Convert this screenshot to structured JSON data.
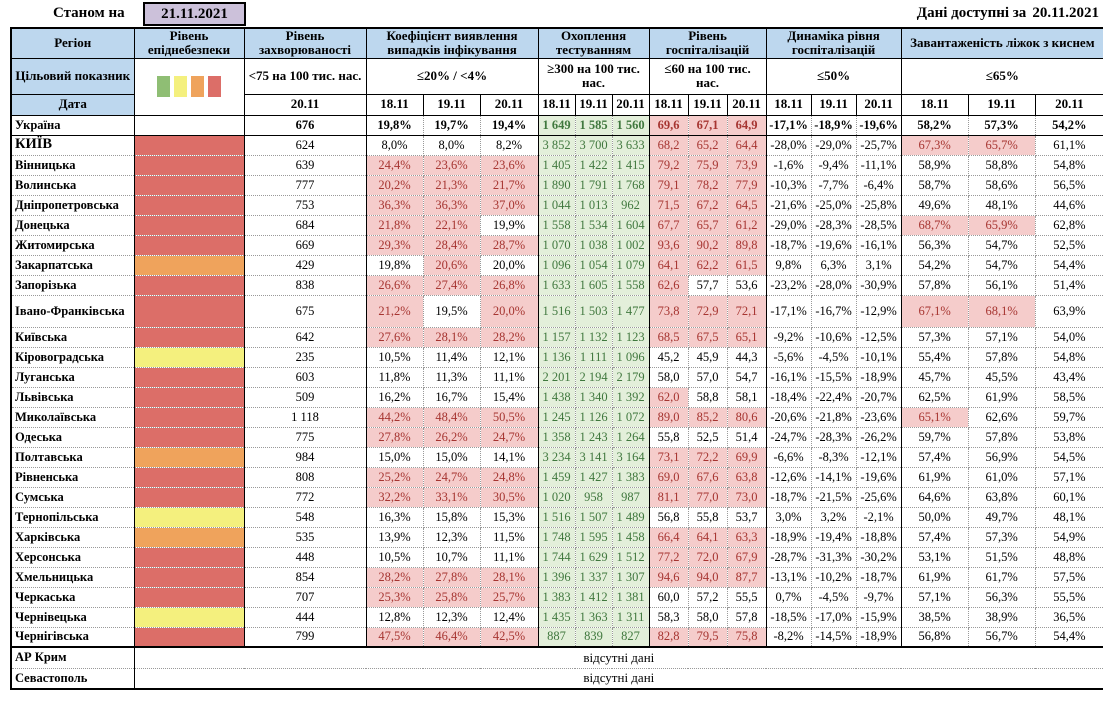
{
  "meta": {
    "as_of_label": "Станом на",
    "as_of_date": "21.11.2021",
    "available_label": "Дані доступні за",
    "available_date": "20.11.2021"
  },
  "header": {
    "region": "Регіон",
    "target_label": "Цільовий показник",
    "date_label": "Дата",
    "legend_colors": [
      "#8FBE74",
      "#F4F07E",
      "#EFA35C",
      "#DC6E68"
    ],
    "legend_names": [
      "green",
      "yellow",
      "orange",
      "red"
    ],
    "groups": [
      {
        "title": "Рівень епіднебезпеки",
        "target": "",
        "dates": []
      },
      {
        "title": "Рівень захворюваності",
        "target": "<75 на 100 тис. нас.",
        "dates": [
          "20.11"
        ]
      },
      {
        "title": "Коефіцієнт виявлення випадків інфікування",
        "target": "≤20% / <4%",
        "dates": [
          "18.11",
          "19.11",
          "20.11"
        ]
      },
      {
        "title": "Охоплення тестуванням",
        "target": "≥300 на 100 тис. нас.",
        "dates": [
          "18.11",
          "19.11",
          "20.11"
        ]
      },
      {
        "title": "Рівень госпіталізацій",
        "target": "≤60 на 100 тис. нас.",
        "dates": [
          "18.11",
          "19.11",
          "20.11"
        ]
      },
      {
        "title": "Динаміка рівня госпіталізацій",
        "target": "≤50%",
        "dates": [
          "18.11",
          "19.11",
          "20.11"
        ]
      },
      {
        "title": "Завантаженість ліжок з киснем",
        "target": "≤65%",
        "dates": [
          "18.11",
          "19.11",
          "20.11"
        ]
      }
    ]
  },
  "colors": {
    "header_blue": "#BDD7EE",
    "lavender_box": "#CCC1DA",
    "level_red": "#DC6E68",
    "level_orange": "#EFA35C",
    "level_yellow": "#F4F07E",
    "level_green": "#8FBE74",
    "alert_pink_bg": "#F5CCCB",
    "alert_red_text": "#A63531",
    "ok_green_bg": "#E3EFDA",
    "ok_green_text": "#40783E"
  },
  "rows": [
    {
      "r": "Україна",
      "bold": true,
      "lv": "",
      "inc": "676",
      "det": [
        "19,8%",
        "19,7%",
        "19,4%"
      ],
      "dhl": [
        0,
        0,
        0
      ],
      "tst": [
        "1 649",
        "1 585",
        "1 560"
      ],
      "hsp": [
        "69,6",
        "67,1",
        "64,9"
      ],
      "hhl": [
        1,
        1,
        1
      ],
      "dyn": [
        "-17,1%",
        "-18,9%",
        "-19,6%"
      ],
      "bed": [
        "58,2%",
        "57,3%",
        "54,2%"
      ],
      "bhl": [
        0,
        0,
        0
      ]
    },
    {
      "r": "КИЇВ",
      "caps": true,
      "lv": "red",
      "inc": "624",
      "det": [
        "8,0%",
        "8,0%",
        "8,2%"
      ],
      "dhl": [
        0,
        0,
        0
      ],
      "tst": [
        "3 852",
        "3 700",
        "3 633"
      ],
      "hsp": [
        "68,2",
        "65,2",
        "64,4"
      ],
      "hhl": [
        1,
        1,
        1
      ],
      "dyn": [
        "-28,0%",
        "-29,0%",
        "-25,7%"
      ],
      "bed": [
        "67,3%",
        "65,7%",
        "61,1%"
      ],
      "bhl": [
        1,
        1,
        0
      ]
    },
    {
      "r": "Вінницька",
      "lv": "red",
      "inc": "639",
      "det": [
        "24,4%",
        "23,6%",
        "23,6%"
      ],
      "dhl": [
        1,
        1,
        1
      ],
      "tst": [
        "1 405",
        "1 422",
        "1 415"
      ],
      "hsp": [
        "79,2",
        "75,9",
        "73,9"
      ],
      "hhl": [
        1,
        1,
        1
      ],
      "dyn": [
        "-1,6%",
        "-9,4%",
        "-11,1%"
      ],
      "bed": [
        "58,9%",
        "58,8%",
        "54,8%"
      ],
      "bhl": [
        0,
        0,
        0
      ]
    },
    {
      "r": "Волинська",
      "lv": "red",
      "inc": "777",
      "det": [
        "20,2%",
        "21,3%",
        "21,7%"
      ],
      "dhl": [
        1,
        1,
        1
      ],
      "tst": [
        "1 890",
        "1 791",
        "1 768"
      ],
      "hsp": [
        "79,1",
        "78,2",
        "77,9"
      ],
      "hhl": [
        1,
        1,
        1
      ],
      "dyn": [
        "-10,3%",
        "-7,7%",
        "-6,4%"
      ],
      "bed": [
        "58,7%",
        "58,6%",
        "56,5%"
      ],
      "bhl": [
        0,
        0,
        0
      ]
    },
    {
      "r": "Дніпропетровська",
      "lv": "red",
      "inc": "753",
      "det": [
        "36,3%",
        "36,3%",
        "37,0%"
      ],
      "dhl": [
        1,
        1,
        1
      ],
      "tst": [
        "1 044",
        "1 013",
        "962"
      ],
      "hsp": [
        "71,5",
        "67,2",
        "64,5"
      ],
      "hhl": [
        1,
        1,
        1
      ],
      "dyn": [
        "-21,6%",
        "-25,0%",
        "-25,8%"
      ],
      "bed": [
        "49,6%",
        "48,1%",
        "44,6%"
      ],
      "bhl": [
        0,
        0,
        0
      ]
    },
    {
      "r": "Донецька",
      "lv": "red",
      "inc": "684",
      "det": [
        "21,8%",
        "22,1%",
        "19,9%"
      ],
      "dhl": [
        1,
        1,
        0
      ],
      "tst": [
        "1 558",
        "1 534",
        "1 604"
      ],
      "hsp": [
        "67,7",
        "65,7",
        "61,2"
      ],
      "hhl": [
        1,
        1,
        1
      ],
      "dyn": [
        "-29,0%",
        "-28,3%",
        "-28,5%"
      ],
      "bed": [
        "68,7%",
        "65,9%",
        "62,8%"
      ],
      "bhl": [
        1,
        1,
        0
      ]
    },
    {
      "r": "Житомирська",
      "lv": "red",
      "inc": "669",
      "det": [
        "29,3%",
        "28,4%",
        "28,7%"
      ],
      "dhl": [
        1,
        1,
        1
      ],
      "tst": [
        "1 070",
        "1 038",
        "1 002"
      ],
      "hsp": [
        "93,6",
        "90,2",
        "89,8"
      ],
      "hhl": [
        1,
        1,
        1
      ],
      "dyn": [
        "-18,7%",
        "-19,6%",
        "-16,1%"
      ],
      "bed": [
        "56,3%",
        "54,7%",
        "52,5%"
      ],
      "bhl": [
        0,
        0,
        0
      ]
    },
    {
      "r": "Закарпатська",
      "lv": "orange",
      "inc": "429",
      "det": [
        "19,8%",
        "20,6%",
        "20,0%"
      ],
      "dhl": [
        0,
        1,
        0
      ],
      "tst": [
        "1 096",
        "1 054",
        "1 079"
      ],
      "hsp": [
        "64,1",
        "62,2",
        "61,5"
      ],
      "hhl": [
        1,
        1,
        1
      ],
      "dyn": [
        "9,8%",
        "6,3%",
        "3,1%"
      ],
      "bed": [
        "54,2%",
        "54,7%",
        "54,4%"
      ],
      "bhl": [
        0,
        0,
        0
      ]
    },
    {
      "r": "Запорізька",
      "lv": "red",
      "inc": "838",
      "det": [
        "26,6%",
        "27,4%",
        "26,8%"
      ],
      "dhl": [
        1,
        1,
        1
      ],
      "tst": [
        "1 633",
        "1 605",
        "1 558"
      ],
      "hsp": [
        "62,6",
        "57,7",
        "53,6"
      ],
      "hhl": [
        1,
        0,
        0
      ],
      "dyn": [
        "-23,2%",
        "-28,0%",
        "-30,9%"
      ],
      "bed": [
        "57,8%",
        "56,1%",
        "51,4%"
      ],
      "bhl": [
        0,
        0,
        0
      ]
    },
    {
      "r": "Івано-Франківська",
      "tall": true,
      "lv": "red",
      "inc": "675",
      "det": [
        "21,2%",
        "19,5%",
        "20,0%"
      ],
      "dhl": [
        1,
        0,
        1
      ],
      "tst": [
        "1 516",
        "1 503",
        "1 477"
      ],
      "hsp": [
        "73,8",
        "72,9",
        "72,1"
      ],
      "hhl": [
        1,
        1,
        1
      ],
      "dyn": [
        "-17,1%",
        "-16,7%",
        "-12,9%"
      ],
      "bed": [
        "67,1%",
        "68,1%",
        "63,9%"
      ],
      "bhl": [
        1,
        1,
        0
      ]
    },
    {
      "r": "Київська",
      "lv": "red",
      "inc": "642",
      "det": [
        "27,6%",
        "28,1%",
        "28,2%"
      ],
      "dhl": [
        1,
        1,
        1
      ],
      "tst": [
        "1 157",
        "1 132",
        "1 123"
      ],
      "hsp": [
        "68,5",
        "67,5",
        "65,1"
      ],
      "hhl": [
        1,
        1,
        1
      ],
      "dyn": [
        "-9,2%",
        "-10,6%",
        "-12,5%"
      ],
      "bed": [
        "57,3%",
        "57,1%",
        "54,0%"
      ],
      "bhl": [
        0,
        0,
        0
      ]
    },
    {
      "r": "Кіровоградська",
      "lv": "yellow",
      "inc": "235",
      "det": [
        "10,5%",
        "11,4%",
        "12,1%"
      ],
      "dhl": [
        0,
        0,
        0
      ],
      "tst": [
        "1 136",
        "1 111",
        "1 096"
      ],
      "hsp": [
        "45,2",
        "45,9",
        "44,3"
      ],
      "hhl": [
        0,
        0,
        0
      ],
      "dyn": [
        "-5,6%",
        "-4,5%",
        "-10,1%"
      ],
      "bed": [
        "55,4%",
        "57,8%",
        "54,8%"
      ],
      "bhl": [
        0,
        0,
        0
      ]
    },
    {
      "r": "Луганська",
      "lv": "red",
      "inc": "603",
      "det": [
        "11,8%",
        "11,3%",
        "11,1%"
      ],
      "dhl": [
        0,
        0,
        0
      ],
      "tst": [
        "2 201",
        "2 194",
        "2 179"
      ],
      "hsp": [
        "58,0",
        "57,0",
        "54,7"
      ],
      "hhl": [
        0,
        0,
        0
      ],
      "dyn": [
        "-16,1%",
        "-15,5%",
        "-18,9%"
      ],
      "bed": [
        "45,7%",
        "45,5%",
        "43,4%"
      ],
      "bhl": [
        0,
        0,
        0
      ]
    },
    {
      "r": "Львівська",
      "lv": "red",
      "inc": "509",
      "det": [
        "16,2%",
        "16,7%",
        "15,4%"
      ],
      "dhl": [
        0,
        0,
        0
      ],
      "tst": [
        "1 438",
        "1 340",
        "1 392"
      ],
      "hsp": [
        "62,0",
        "58,8",
        "58,1"
      ],
      "hhl": [
        1,
        0,
        0
      ],
      "dyn": [
        "-18,4%",
        "-22,4%",
        "-20,7%"
      ],
      "bed": [
        "62,5%",
        "61,9%",
        "58,5%"
      ],
      "bhl": [
        0,
        0,
        0
      ]
    },
    {
      "r": "Миколаївська",
      "lv": "red",
      "inc": "1 118",
      "det": [
        "44,2%",
        "48,4%",
        "50,5%"
      ],
      "dhl": [
        1,
        1,
        1
      ],
      "tst": [
        "1 245",
        "1 126",
        "1 072"
      ],
      "hsp": [
        "89,0",
        "85,2",
        "80,6"
      ],
      "hhl": [
        1,
        1,
        1
      ],
      "dyn": [
        "-20,6%",
        "-21,8%",
        "-23,6%"
      ],
      "bed": [
        "65,1%",
        "62,6%",
        "59,7%"
      ],
      "bhl": [
        1,
        0,
        0
      ]
    },
    {
      "r": "Одеська",
      "lv": "red",
      "inc": "775",
      "det": [
        "27,8%",
        "26,2%",
        "24,7%"
      ],
      "dhl": [
        1,
        1,
        1
      ],
      "tst": [
        "1 358",
        "1 243",
        "1 264"
      ],
      "hsp": [
        "55,8",
        "52,5",
        "51,4"
      ],
      "hhl": [
        0,
        0,
        0
      ],
      "dyn": [
        "-24,7%",
        "-28,3%",
        "-26,2%"
      ],
      "bed": [
        "59,7%",
        "57,8%",
        "53,8%"
      ],
      "bhl": [
        0,
        0,
        0
      ]
    },
    {
      "r": "Полтавська",
      "lv": "orange",
      "inc": "984",
      "det": [
        "15,0%",
        "15,0%",
        "14,1%"
      ],
      "dhl": [
        0,
        0,
        0
      ],
      "tst": [
        "3 234",
        "3 141",
        "3 164"
      ],
      "hsp": [
        "73,1",
        "72,2",
        "69,9"
      ],
      "hhl": [
        1,
        1,
        1
      ],
      "dyn": [
        "-6,6%",
        "-8,3%",
        "-12,1%"
      ],
      "bed": [
        "57,4%",
        "56,9%",
        "54,5%"
      ],
      "bhl": [
        0,
        0,
        0
      ]
    },
    {
      "r": "Рівненська",
      "lv": "red",
      "inc": "808",
      "det": [
        "25,2%",
        "24,7%",
        "24,8%"
      ],
      "dhl": [
        1,
        1,
        1
      ],
      "tst": [
        "1 459",
        "1 427",
        "1 383"
      ],
      "hsp": [
        "69,0",
        "67,6",
        "63,8"
      ],
      "hhl": [
        1,
        1,
        1
      ],
      "dyn": [
        "-12,6%",
        "-14,1%",
        "-19,6%"
      ],
      "bed": [
        "61,9%",
        "61,0%",
        "57,1%"
      ],
      "bhl": [
        0,
        0,
        0
      ]
    },
    {
      "r": "Сумська",
      "lv": "red",
      "inc": "772",
      "det": [
        "32,2%",
        "33,1%",
        "30,5%"
      ],
      "dhl": [
        1,
        1,
        1
      ],
      "tst": [
        "1 020",
        "958",
        "987"
      ],
      "hsp": [
        "81,1",
        "77,0",
        "73,0"
      ],
      "hhl": [
        1,
        1,
        1
      ],
      "dyn": [
        "-18,7%",
        "-21,5%",
        "-25,6%"
      ],
      "bed": [
        "64,6%",
        "63,8%",
        "60,1%"
      ],
      "bhl": [
        0,
        0,
        0
      ]
    },
    {
      "r": "Тернопільська",
      "lv": "yellow",
      "inc": "548",
      "det": [
        "16,3%",
        "15,8%",
        "15,3%"
      ],
      "dhl": [
        0,
        0,
        0
      ],
      "tst": [
        "1 516",
        "1 507",
        "1 489"
      ],
      "hsp": [
        "56,8",
        "55,8",
        "53,7"
      ],
      "hhl": [
        0,
        0,
        0
      ],
      "dyn": [
        "3,0%",
        "3,2%",
        "-2,1%"
      ],
      "bed": [
        "50,0%",
        "49,7%",
        "48,1%"
      ],
      "bhl": [
        0,
        0,
        0
      ]
    },
    {
      "r": "Харківська",
      "lv": "orange",
      "inc": "535",
      "det": [
        "13,9%",
        "12,3%",
        "11,5%"
      ],
      "dhl": [
        0,
        0,
        0
      ],
      "tst": [
        "1 748",
        "1 595",
        "1 458"
      ],
      "hsp": [
        "66,4",
        "64,1",
        "63,3"
      ],
      "hhl": [
        1,
        1,
        1
      ],
      "dyn": [
        "-18,9%",
        "-19,4%",
        "-18,8%"
      ],
      "bed": [
        "57,4%",
        "57,3%",
        "54,9%"
      ],
      "bhl": [
        0,
        0,
        0
      ]
    },
    {
      "r": "Херсонська",
      "lv": "red",
      "inc": "448",
      "det": [
        "10,5%",
        "10,7%",
        "11,1%"
      ],
      "dhl": [
        0,
        0,
        0
      ],
      "tst": [
        "1 744",
        "1 629",
        "1 512"
      ],
      "hsp": [
        "77,2",
        "72,0",
        "67,9"
      ],
      "hhl": [
        1,
        1,
        1
      ],
      "dyn": [
        "-28,7%",
        "-31,3%",
        "-30,2%"
      ],
      "bed": [
        "53,1%",
        "51,5%",
        "48,8%"
      ],
      "bhl": [
        0,
        0,
        0
      ]
    },
    {
      "r": "Хмельницька",
      "lv": "red",
      "inc": "854",
      "det": [
        "28,2%",
        "27,8%",
        "28,1%"
      ],
      "dhl": [
        1,
        1,
        1
      ],
      "tst": [
        "1 396",
        "1 337",
        "1 307"
      ],
      "hsp": [
        "94,6",
        "94,0",
        "87,7"
      ],
      "hhl": [
        1,
        1,
        1
      ],
      "dyn": [
        "-13,1%",
        "-10,2%",
        "-18,7%"
      ],
      "bed": [
        "61,9%",
        "61,7%",
        "57,5%"
      ],
      "bhl": [
        0,
        0,
        0
      ]
    },
    {
      "r": "Черкаська",
      "lv": "red",
      "inc": "707",
      "det": [
        "25,3%",
        "25,8%",
        "25,7%"
      ],
      "dhl": [
        1,
        1,
        1
      ],
      "tst": [
        "1 383",
        "1 412",
        "1 381"
      ],
      "hsp": [
        "60,0",
        "57,2",
        "55,5"
      ],
      "hhl": [
        0,
        0,
        0
      ],
      "dyn": [
        "0,7%",
        "-4,5%",
        "-9,7%"
      ],
      "bed": [
        "57,1%",
        "56,3%",
        "55,5%"
      ],
      "bhl": [
        0,
        0,
        0
      ]
    },
    {
      "r": "Чернівецька",
      "lv": "yellow",
      "inc": "444",
      "det": [
        "12,8%",
        "12,3%",
        "12,4%"
      ],
      "dhl": [
        0,
        0,
        0
      ],
      "tst": [
        "1 435",
        "1 363",
        "1 311"
      ],
      "hsp": [
        "58,3",
        "58,0",
        "57,8"
      ],
      "hhl": [
        0,
        0,
        0
      ],
      "dyn": [
        "-18,5%",
        "-17,0%",
        "-15,9%"
      ],
      "bed": [
        "38,5%",
        "38,9%",
        "36,5%"
      ],
      "bhl": [
        0,
        0,
        0
      ]
    },
    {
      "r": "Чернігівська",
      "lv": "red",
      "inc": "799",
      "det": [
        "47,5%",
        "46,4%",
        "42,5%"
      ],
      "dhl": [
        1,
        1,
        1
      ],
      "tst": [
        "887",
        "839",
        "827"
      ],
      "hsp": [
        "82,8",
        "79,5",
        "75,8"
      ],
      "hhl": [
        1,
        1,
        1
      ],
      "dyn": [
        "-8,2%",
        "-14,5%",
        "-18,9%"
      ],
      "bed": [
        "56,8%",
        "56,7%",
        "54,4%"
      ],
      "bhl": [
        0,
        0,
        0
      ]
    }
  ],
  "no_data": [
    {
      "region": "АР Крим",
      "text": "відсутні дані"
    },
    {
      "region": "Севастополь",
      "text": "відсутні дані"
    }
  ]
}
